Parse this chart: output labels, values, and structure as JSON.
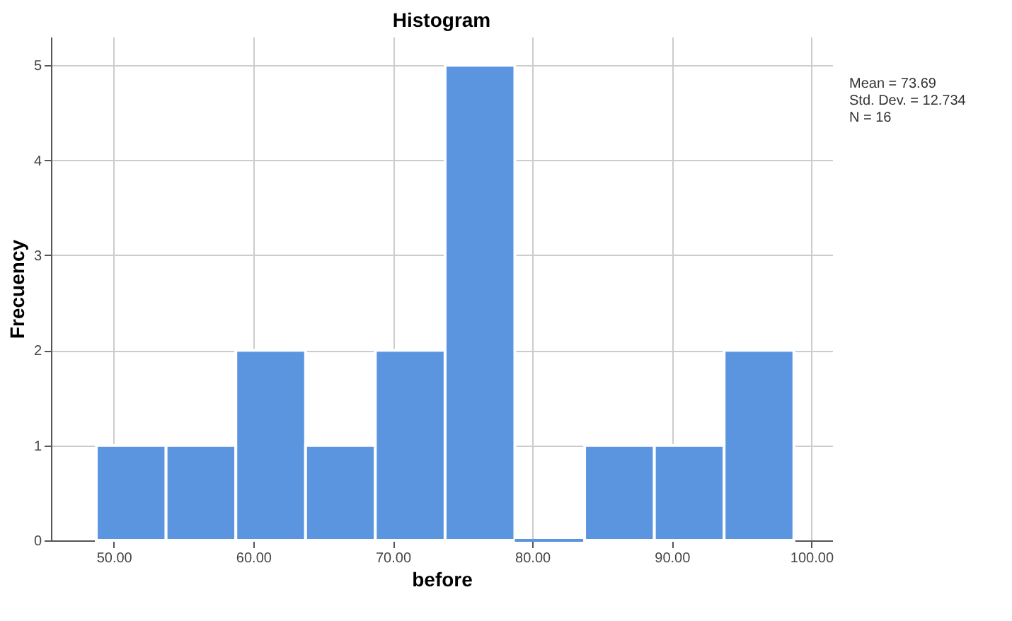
{
  "chart_data": {
    "type": "histogram",
    "title": "Histogram",
    "xlabel": "before",
    "ylabel": "Frecuency",
    "bins": [
      48.75,
      53.75,
      58.75,
      63.75,
      68.75,
      73.75,
      78.75,
      83.75,
      88.75,
      93.75,
      98.75
    ],
    "values": [
      1,
      1,
      2,
      1,
      2,
      5,
      0,
      1,
      1,
      2
    ],
    "color": "#5b95e0",
    "xlim": [
      45.5,
      101.5
    ],
    "ylim": [
      0,
      5.3
    ],
    "xticks": [
      {
        "value": 50,
        "label": "50.00"
      },
      {
        "value": 60,
        "label": "60.00"
      },
      {
        "value": 70,
        "label": "70.00"
      },
      {
        "value": 80,
        "label": "80.00"
      },
      {
        "value": 90,
        "label": "90.00"
      },
      {
        "value": 100,
        "label": "100.00"
      }
    ],
    "yticks": [
      0,
      1,
      2,
      3,
      4,
      5
    ],
    "grid": true,
    "annotations": [
      "Mean = 73.69",
      "Std. Dev. = 12.734",
      "N = 16"
    ]
  }
}
